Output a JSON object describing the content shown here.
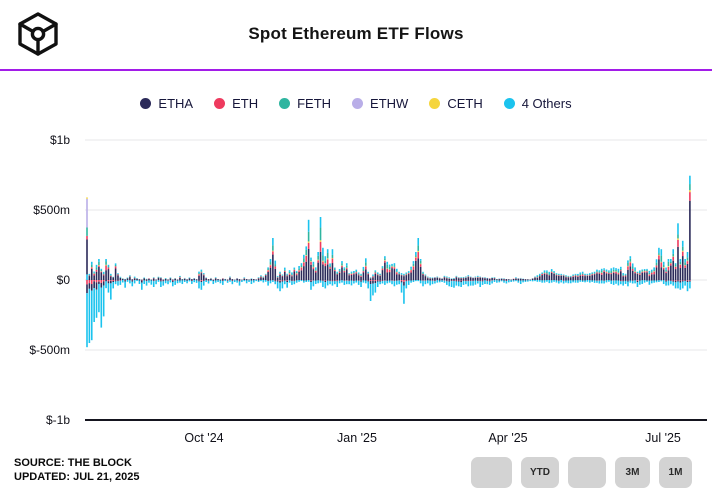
{
  "header": {
    "title": "Spot Ethereum ETF Flows",
    "logo": "the-block-cube-logo",
    "divider_color": "#A21CE8"
  },
  "legend": [
    {
      "label": "ETHA",
      "color": "#2B2A59"
    },
    {
      "label": "ETH",
      "color": "#EE3A5E"
    },
    {
      "label": "FETH",
      "color": "#2FB5A0"
    },
    {
      "label": "ETHW",
      "color": "#B9AEE8"
    },
    {
      "label": "CETH",
      "color": "#F5D53D"
    },
    {
      "label": "4 Others",
      "color": "#1BC3EE"
    }
  ],
  "chart_data": {
    "type": "bar",
    "subtype": "stacked-daily-flows",
    "title": "Spot Ethereum ETF Flows",
    "unit": "USD millions per day",
    "x_range": [
      "Jul 23 2024",
      "Jul 21 2025"
    ],
    "grid": true,
    "legend_position": "top",
    "ylim": [
      -1000,
      1000
    ],
    "y_axis": {
      "ticks": [
        {
          "label": "$1b",
          "value": 1000
        },
        {
          "label": "$500m",
          "value": 500
        },
        {
          "label": "$0",
          "value": 0
        },
        {
          "label": "$-500m",
          "value": -500
        },
        {
          "label": "$-1b",
          "value": -1000
        }
      ]
    },
    "x_axis": {
      "ticks": [
        "Oct '24",
        "Jan '25",
        "Apr '25",
        "Jul '25"
      ]
    },
    "series_keys": [
      "ETHA",
      "ETH",
      "FETH",
      "ETHW",
      "CETH",
      "4 Others"
    ],
    "pos_stack_order": [
      "ETHA",
      "ETH",
      "CETH",
      "FETH",
      "4 Others"
    ],
    "pos_fractions": {
      "ETHA": 0.6,
      "ETH": 0.11,
      "CETH": 0.02,
      "FETH": 0.12,
      "4 Others": 0.15
    },
    "neg_stack_order": [
      "ETH",
      "ETHA",
      "4 Others"
    ],
    "neg_fractions": {
      "ETH": 0.06,
      "ETHA": 0.14,
      "4 Others": 0.8
    },
    "first_day_segments": [
      [
        "4 Others",
        40
      ],
      [
        "ETHA",
        250
      ],
      [
        "ETH",
        25
      ],
      [
        "FETH",
        60
      ],
      [
        "ETHW",
        205
      ],
      [
        "CETH",
        10
      ]
    ],
    "bars": [
      [
        590,
        -480
      ],
      [
        45,
        -450
      ],
      [
        130,
        -430
      ],
      [
        60,
        -300
      ],
      [
        110,
        -270
      ],
      [
        150,
        -230
      ],
      [
        80,
        -340
      ],
      [
        60,
        -260
      ],
      [
        150,
        -60
      ],
      [
        110,
        -90
      ],
      [
        45,
        -140
      ],
      [
        25,
        -60
      ],
      [
        120,
        -30
      ],
      [
        50,
        -40
      ],
      [
        25,
        -35
      ],
      [
        15,
        -20
      ],
      [
        10,
        -55
      ],
      [
        20,
        -15
      ],
      [
        35,
        -25
      ],
      [
        10,
        -45
      ],
      [
        25,
        -25
      ],
      [
        15,
        -10
      ],
      [
        10,
        -30
      ],
      [
        5,
        -70
      ],
      [
        20,
        -30
      ],
      [
        10,
        -40
      ],
      [
        15,
        -20
      ],
      [
        5,
        -35
      ],
      [
        20,
        -50
      ],
      [
        5,
        -30
      ],
      [
        25,
        -15
      ],
      [
        20,
        -50
      ],
      [
        5,
        -40
      ],
      [
        15,
        -25
      ],
      [
        5,
        -30
      ],
      [
        20,
        -20
      ],
      [
        5,
        -45
      ],
      [
        15,
        -35
      ],
      [
        5,
        -25
      ],
      [
        30,
        -20
      ],
      [
        10,
        -30
      ],
      [
        15,
        -15
      ],
      [
        8,
        -25
      ],
      [
        20,
        -12
      ],
      [
        10,
        -28
      ],
      [
        15,
        -18
      ],
      [
        8,
        -22
      ],
      [
        60,
        -60
      ],
      [
        75,
        -70
      ],
      [
        50,
        -40
      ],
      [
        20,
        -15
      ],
      [
        10,
        -25
      ],
      [
        15,
        -10
      ],
      [
        5,
        -30
      ],
      [
        20,
        -20
      ],
      [
        10,
        -15
      ],
      [
        5,
        -25
      ],
      [
        15,
        -35
      ],
      [
        10,
        -10
      ],
      [
        5,
        -20
      ],
      [
        25,
        -15
      ],
      [
        10,
        -30
      ],
      [
        5,
        -15
      ],
      [
        15,
        -20
      ],
      [
        10,
        -40
      ],
      [
        5,
        -15
      ],
      [
        20,
        -10
      ],
      [
        10,
        -25
      ],
      [
        5,
        -15
      ],
      [
        15,
        -30
      ],
      [
        10,
        -20
      ],
      [
        5,
        -10
      ],
      [
        20,
        -15
      ],
      [
        35,
        -10
      ],
      [
        25,
        -20
      ],
      [
        45,
        -15
      ],
      [
        90,
        -40
      ],
      [
        150,
        -25
      ],
      [
        300,
        -15
      ],
      [
        140,
        -30
      ],
      [
        30,
        -60
      ],
      [
        60,
        -80
      ],
      [
        40,
        -60
      ],
      [
        90,
        -30
      ],
      [
        45,
        -55
      ],
      [
        70,
        -20
      ],
      [
        55,
        -35
      ],
      [
        90,
        -30
      ],
      [
        65,
        -20
      ],
      [
        100,
        -15
      ],
      [
        120,
        -10
      ],
      [
        180,
        -20
      ],
      [
        240,
        -15
      ],
      [
        430,
        -15
      ],
      [
        160,
        -70
      ],
      [
        130,
        -45
      ],
      [
        90,
        -30
      ],
      [
        200,
        -25
      ],
      [
        450,
        -20
      ],
      [
        230,
        -50
      ],
      [
        170,
        -60
      ],
      [
        220,
        -40
      ],
      [
        120,
        -30
      ],
      [
        220,
        -40
      ],
      [
        90,
        -30
      ],
      [
        60,
        -50
      ],
      [
        80,
        -25
      ],
      [
        135,
        -20
      ],
      [
        90,
        -35
      ],
      [
        120,
        -30
      ],
      [
        50,
        -30
      ],
      [
        60,
        -40
      ],
      [
        65,
        -25
      ],
      [
        75,
        -20
      ],
      [
        55,
        -35
      ],
      [
        45,
        -50
      ],
      [
        95,
        -20
      ],
      [
        155,
        -25
      ],
      [
        60,
        -60
      ],
      [
        20,
        -150
      ],
      [
        40,
        -110
      ],
      [
        70,
        -90
      ],
      [
        55,
        -50
      ],
      [
        45,
        -30
      ],
      [
        100,
        -25
      ],
      [
        170,
        -35
      ],
      [
        130,
        -25
      ],
      [
        110,
        -20
      ],
      [
        115,
        -30
      ],
      [
        120,
        -45
      ],
      [
        80,
        -35
      ],
      [
        60,
        -30
      ],
      [
        50,
        -90
      ],
      [
        45,
        -170
      ],
      [
        55,
        -60
      ],
      [
        65,
        -35
      ],
      [
        95,
        -20
      ],
      [
        135,
        -15
      ],
      [
        200,
        -10
      ],
      [
        300,
        -10
      ],
      [
        150,
        -25
      ],
      [
        60,
        -45
      ],
      [
        40,
        -30
      ],
      [
        25,
        -25
      ],
      [
        20,
        -40
      ],
      [
        20,
        -30
      ],
      [
        22,
        -25
      ],
      [
        25,
        -20
      ],
      [
        18,
        -18
      ],
      [
        15,
        -15
      ],
      [
        30,
        -20
      ],
      [
        25,
        -35
      ],
      [
        20,
        -45
      ],
      [
        15,
        -50
      ],
      [
        15,
        -55
      ],
      [
        30,
        -40
      ],
      [
        20,
        -45
      ],
      [
        20,
        -50
      ],
      [
        22,
        -35
      ],
      [
        25,
        -30
      ],
      [
        35,
        -45
      ],
      [
        25,
        -40
      ],
      [
        20,
        -40
      ],
      [
        25,
        -35
      ],
      [
        30,
        -25
      ],
      [
        25,
        -50
      ],
      [
        22,
        -35
      ],
      [
        20,
        -30
      ],
      [
        18,
        -30
      ],
      [
        15,
        -35
      ],
      [
        20,
        -25
      ],
      [
        20,
        -15
      ],
      [
        10,
        -20
      ],
      [
        12,
        -18
      ],
      [
        15,
        -10
      ],
      [
        12,
        -20
      ],
      [
        10,
        -25
      ],
      [
        8,
        -18
      ],
      [
        5,
        -15
      ],
      [
        12,
        -12
      ],
      [
        20,
        -10
      ],
      [
        15,
        -20
      ],
      [
        15,
        -30
      ],
      [
        12,
        -18
      ],
      [
        10,
        -15
      ],
      [
        8,
        -12
      ],
      [
        5,
        -10
      ],
      [
        15,
        -12
      ],
      [
        25,
        -10
      ],
      [
        35,
        -15
      ],
      [
        45,
        -15
      ],
      [
        55,
        -20
      ],
      [
        70,
        -20
      ],
      [
        70,
        -15
      ],
      [
        60,
        -25
      ],
      [
        80,
        -20
      ],
      [
        65,
        -15
      ],
      [
        50,
        -20
      ],
      [
        45,
        -25
      ],
      [
        45,
        -20
      ],
      [
        40,
        -25
      ],
      [
        35,
        -20
      ],
      [
        30,
        -25
      ],
      [
        30,
        -25
      ],
      [
        40,
        -18
      ],
      [
        45,
        -20
      ],
      [
        45,
        -20
      ],
      [
        55,
        -15
      ],
      [
        60,
        -15
      ],
      [
        45,
        -18
      ],
      [
        45,
        -15
      ],
      [
        50,
        -20
      ],
      [
        55,
        -15
      ],
      [
        60,
        -22
      ],
      [
        75,
        -20
      ],
      [
        70,
        -25
      ],
      [
        80,
        -25
      ],
      [
        85,
        -25
      ],
      [
        75,
        -18
      ],
      [
        70,
        -15
      ],
      [
        85,
        -30
      ],
      [
        90,
        -35
      ],
      [
        85,
        -28
      ],
      [
        80,
        -40
      ],
      [
        95,
        -30
      ],
      [
        50,
        -40
      ],
      [
        45,
        -30
      ],
      [
        140,
        -45
      ],
      [
        170,
        -20
      ],
      [
        120,
        -25
      ],
      [
        90,
        -25
      ],
      [
        60,
        -50
      ],
      [
        70,
        -35
      ],
      [
        75,
        -30
      ],
      [
        78,
        -20
      ],
      [
        80,
        -15
      ],
      [
        65,
        -35
      ],
      [
        75,
        -25
      ],
      [
        90,
        -20
      ],
      [
        150,
        -18
      ],
      [
        230,
        -15
      ],
      [
        220,
        -10
      ],
      [
        130,
        -30
      ],
      [
        90,
        -40
      ],
      [
        150,
        -40
      ],
      [
        150,
        -30
      ],
      [
        220,
        -40
      ],
      [
        120,
        -60
      ],
      [
        405,
        -60
      ],
      [
        150,
        -70
      ],
      [
        280,
        -60
      ],
      [
        150,
        -40
      ],
      [
        200,
        -80
      ],
      [
        745,
        -60
      ]
    ]
  },
  "footer": {
    "source_line1": "SOURCE: THE BLOCK",
    "source_line2": "UPDATED: JUL 21, 2025",
    "buttons": [
      "",
      "YTD",
      "",
      "3M",
      "1M"
    ]
  }
}
